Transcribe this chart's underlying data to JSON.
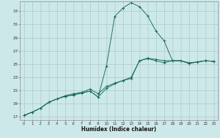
{
  "xlabel": "Humidex (Indice chaleur)",
  "background_color": "#cde8e8",
  "grid_color": "#aac8c8",
  "line_color": "#1a6b5e",
  "xlim": [
    -0.5,
    23.5
  ],
  "ylim": [
    16.5,
    34.5
  ],
  "xticks": [
    0,
    1,
    2,
    3,
    4,
    5,
    6,
    7,
    8,
    9,
    10,
    11,
    12,
    13,
    14,
    15,
    16,
    17,
    18,
    19,
    20,
    21,
    22,
    23
  ],
  "yticks": [
    17,
    19,
    21,
    23,
    25,
    27,
    29,
    31,
    33
  ],
  "curve1_x": [
    0,
    1,
    2,
    3,
    4,
    5,
    6,
    7,
    8,
    9,
    10,
    11,
    12,
    13,
    14,
    15,
    16,
    17,
    18,
    19,
    20,
    21,
    22,
    23
  ],
  "curve1_y": [
    17.2,
    17.7,
    18.3,
    19.2,
    19.7,
    20.1,
    20.3,
    20.6,
    20.9,
    20.0,
    24.7,
    32.2,
    33.5,
    34.3,
    33.7,
    32.3,
    30.0,
    28.5,
    25.5,
    25.5,
    25.1,
    25.3,
    25.5,
    25.4
  ],
  "curve2_x": [
    0,
    1,
    2,
    3,
    4,
    5,
    6,
    7,
    8,
    9,
    10,
    11,
    12,
    13,
    14,
    15,
    16,
    17,
    18,
    19,
    20,
    21,
    22,
    23
  ],
  "curve2_y": [
    17.2,
    17.7,
    18.3,
    19.2,
    19.7,
    20.1,
    20.3,
    20.6,
    20.9,
    20.0,
    21.3,
    22.0,
    22.5,
    22.8,
    25.5,
    25.8,
    25.5,
    25.2,
    25.5,
    25.5,
    25.1,
    25.3,
    25.5,
    25.4
  ],
  "curve3_x": [
    0,
    1,
    2,
    3,
    4,
    5,
    6,
    7,
    8,
    9,
    10,
    11,
    12,
    13,
    14,
    15,
    16,
    17,
    18,
    19,
    20,
    21,
    22,
    23
  ],
  "curve3_y": [
    17.2,
    17.7,
    18.3,
    19.2,
    19.7,
    20.2,
    20.5,
    20.7,
    21.2,
    20.5,
    21.6,
    22.1,
    22.5,
    23.0,
    25.5,
    25.9,
    25.7,
    25.5,
    25.5,
    25.5,
    25.2,
    25.3,
    25.5,
    25.4
  ]
}
